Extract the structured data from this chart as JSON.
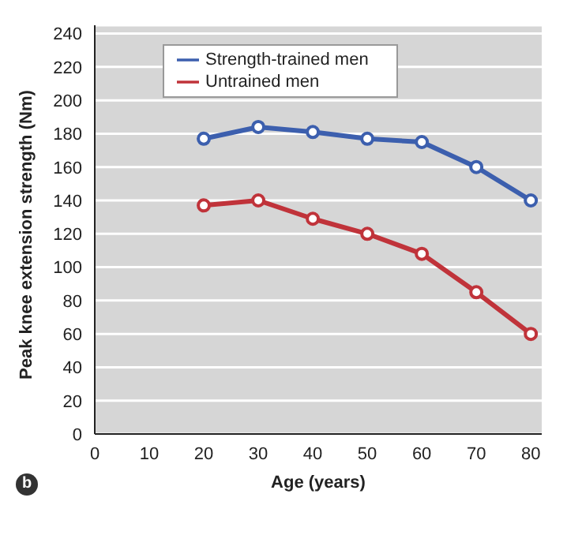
{
  "chart_data": {
    "type": "line",
    "xlabel": "Age (years)",
    "ylabel": "Peak knee extension strength (Nm)",
    "x": [
      20,
      30,
      40,
      50,
      60,
      70,
      80
    ],
    "series": [
      {
        "name": "Strength-trained men",
        "color": "#3c5fae",
        "values": [
          177,
          184,
          181,
          177,
          175,
          160,
          140
        ]
      },
      {
        "name": "Untrained men",
        "color": "#c0333a",
        "values": [
          137,
          140,
          129,
          120,
          108,
          85,
          60
        ]
      }
    ],
    "xlim": [
      0,
      82
    ],
    "xticks": [
      0,
      10,
      20,
      30,
      40,
      50,
      60,
      70,
      80
    ],
    "ylim": [
      0,
      245
    ],
    "yticks": [
      0,
      20,
      40,
      60,
      80,
      100,
      120,
      140,
      160,
      180,
      200,
      220,
      240
    ],
    "grid": "y",
    "legend": "top left",
    "marker": "circle",
    "line_style": "solid",
    "annotations": [
      "b"
    ]
  }
}
